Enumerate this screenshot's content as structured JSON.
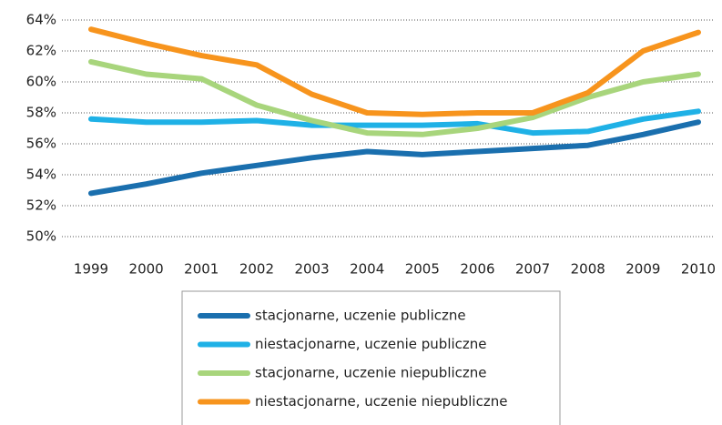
{
  "chart_data": {
    "type": "line",
    "categories": [
      "1999",
      "2000",
      "2001",
      "2002",
      "2003",
      "2004",
      "2005",
      "2006",
      "2007",
      "2008",
      "2009",
      "2010"
    ],
    "series": [
      {
        "name": "stacjonarne, uczenie publiczne",
        "color": "#1a6fae",
        "values": [
          52.8,
          53.4,
          54.1,
          54.6,
          55.1,
          55.5,
          55.3,
          55.5,
          55.7,
          55.9,
          56.6,
          57.4
        ]
      },
      {
        "name": "niestacjonarne, uczenie publiczne",
        "color": "#1fb1e6",
        "values": [
          57.6,
          57.4,
          57.4,
          57.5,
          57.2,
          57.2,
          57.2,
          57.3,
          56.7,
          56.8,
          57.6,
          58.1
        ]
      },
      {
        "name": "stacjonarne, uczenie niepubliczne",
        "color": "#a8d57c",
        "values": [
          61.3,
          60.5,
          60.2,
          58.5,
          57.5,
          56.7,
          56.6,
          57.0,
          57.7,
          59.0,
          60.0,
          60.5
        ]
      },
      {
        "name": "niestacjonarne, uczenie niepubliczne",
        "color": "#f7941d",
        "values": [
          63.4,
          62.5,
          61.7,
          61.1,
          59.2,
          58.0,
          57.9,
          58.0,
          58.0,
          59.3,
          62.0,
          63.2
        ]
      }
    ],
    "ylim": [
      50,
      64
    ],
    "yticks": [
      {
        "value": 50,
        "label": "50%"
      },
      {
        "value": 52,
        "label": "52%"
      },
      {
        "value": 54,
        "label": "54%"
      },
      {
        "value": 56,
        "label": "56%"
      },
      {
        "value": 58,
        "label": "58%"
      },
      {
        "value": 60,
        "label": "60%"
      },
      {
        "value": 62,
        "label": "62%"
      },
      {
        "value": 64,
        "label": "64%"
      }
    ],
    "grid": true
  }
}
